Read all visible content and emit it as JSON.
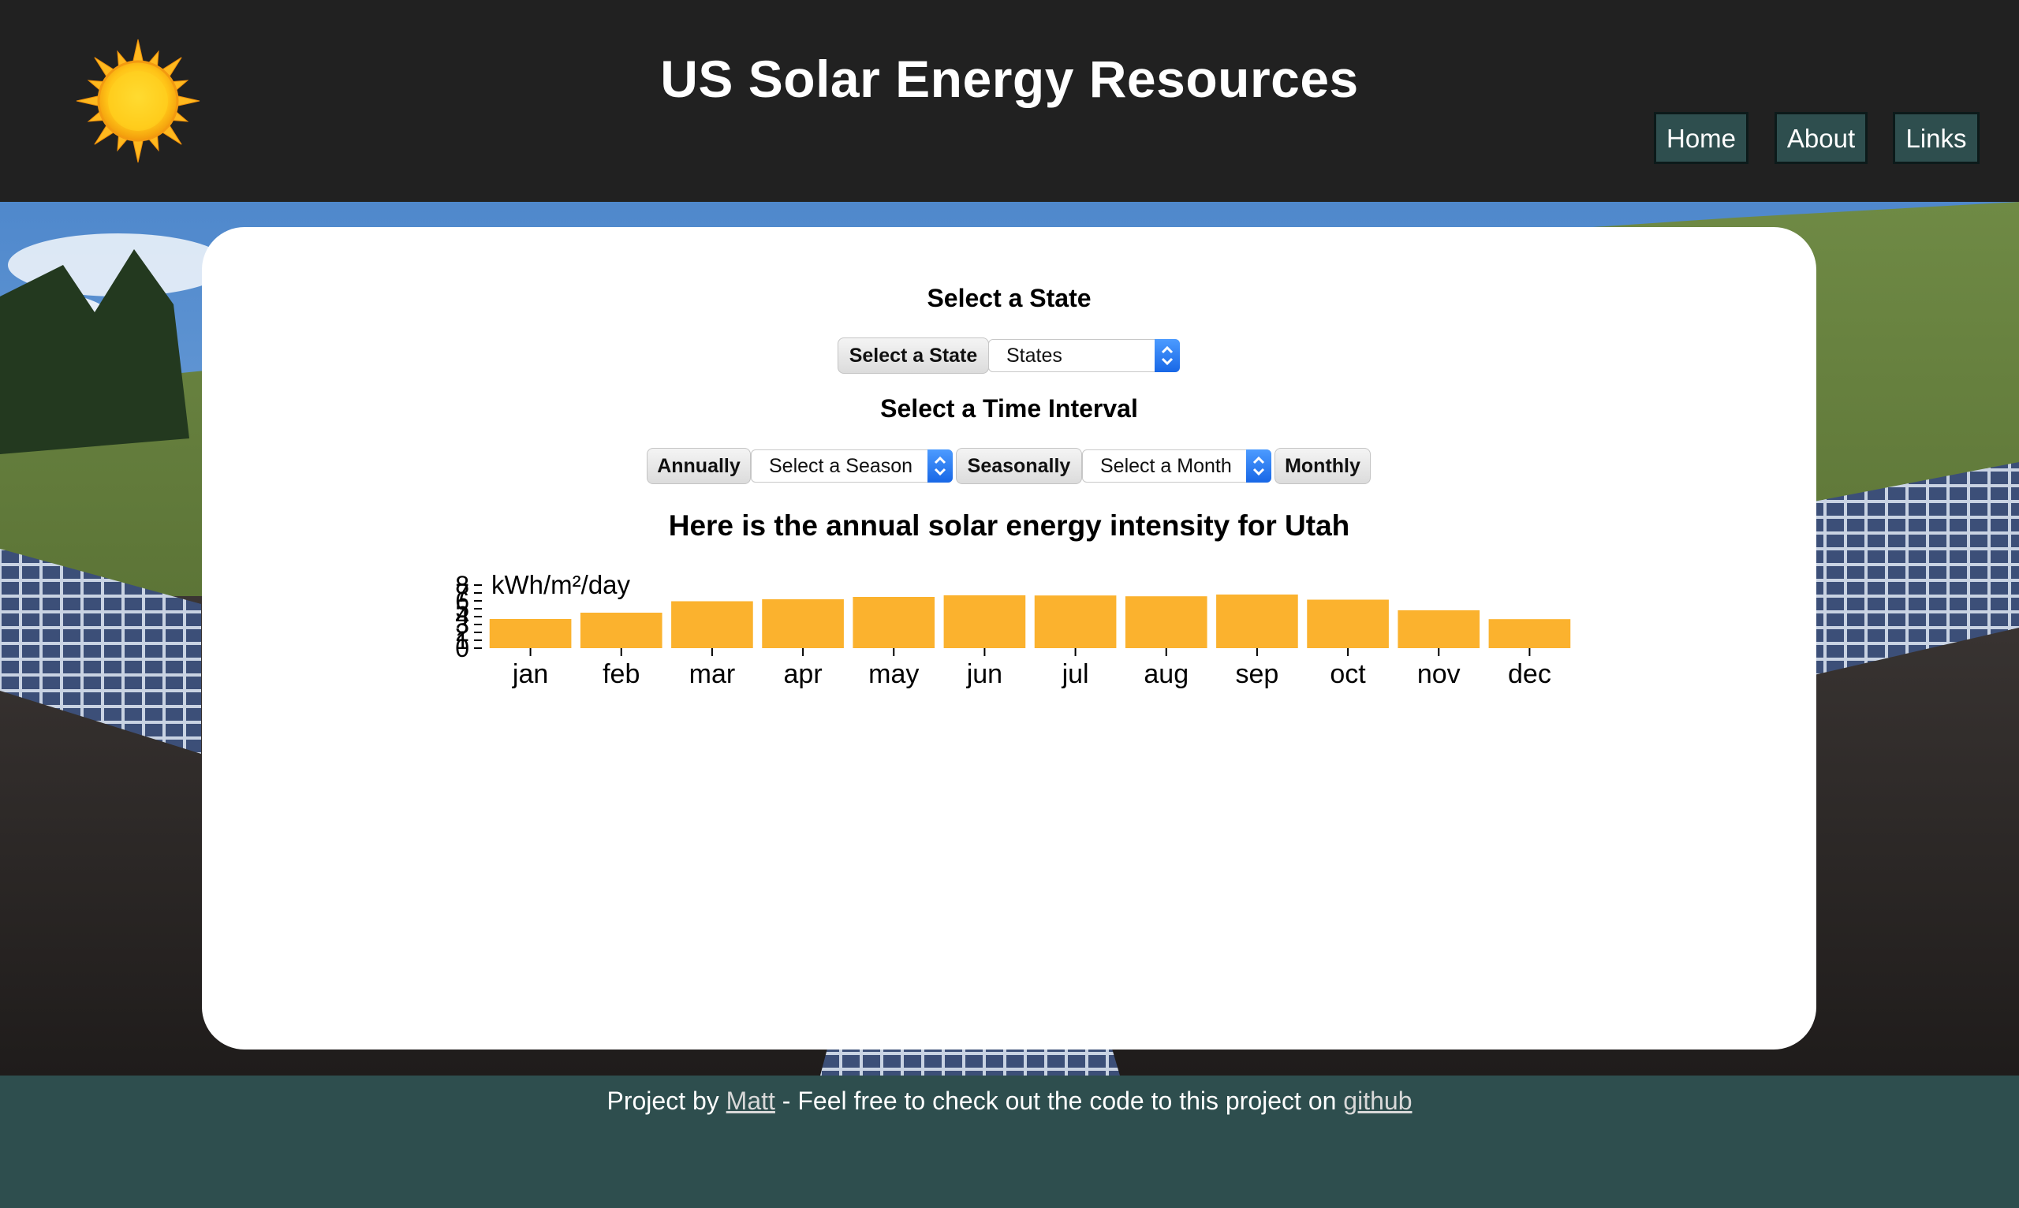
{
  "header": {
    "title": "US Solar Energy Resources",
    "logo_icon": "sun-icon",
    "nav": {
      "home": "Home",
      "about": "About",
      "links": "Links"
    }
  },
  "state_section": {
    "heading": "Select a State",
    "button_label": "Select a State",
    "select_value": "States"
  },
  "interval_section": {
    "heading": "Select a Time Interval",
    "annually_label": "Annually",
    "season_select_value": "Select a Season",
    "seasonally_label": "Seasonally",
    "month_select_value": "Select a Month",
    "monthly_label": "Monthly"
  },
  "chart_data": {
    "type": "bar",
    "title": "Here is the annual solar energy intensity for Utah",
    "ylabel": "kWh/m²/day",
    "xlabel": "",
    "categories": [
      "jan",
      "feb",
      "mar",
      "apr",
      "may",
      "jun",
      "jul",
      "aug",
      "sep",
      "oct",
      "nov",
      "dec"
    ],
    "values": [
      3.7,
      4.5,
      5.95,
      6.2,
      6.5,
      6.7,
      6.68,
      6.58,
      6.8,
      6.15,
      4.8,
      3.68
    ],
    "ylim": [
      0,
      8
    ],
    "yticks": [
      0,
      1,
      2,
      3,
      4,
      5,
      6,
      7,
      8
    ],
    "bar_color": "#fbb22e"
  },
  "footer": {
    "prefix": "Project by ",
    "author_link": "Matt",
    "middle": " - Feel free to check out the code to this project on ",
    "github_link": "github"
  },
  "colors": {
    "header_bg": "#212121",
    "nav_bg": "#2e4e4e",
    "footer_bg": "#2e4e4e",
    "accent": "#fbb22e"
  }
}
